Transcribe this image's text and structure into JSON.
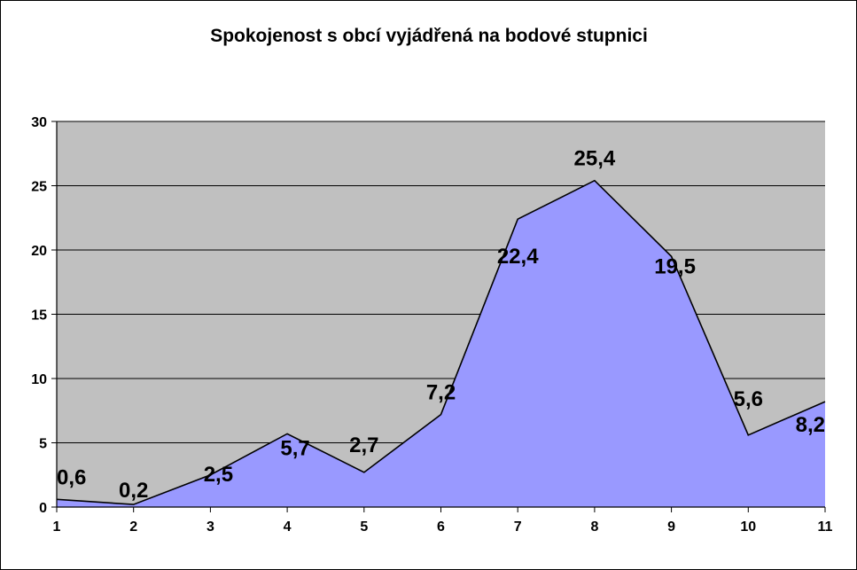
{
  "chart_data": {
    "type": "area",
    "title": "Spokojenost s obcí vyjádřená na bodové stupnici",
    "categories": [
      "1",
      "2",
      "3",
      "4",
      "5",
      "6",
      "7",
      "8",
      "9",
      "10",
      "11"
    ],
    "values": [
      0.6,
      0.2,
      2.5,
      5.7,
      2.7,
      7.2,
      22.4,
      25.4,
      19.5,
      5.6,
      8.2
    ],
    "data_labels": [
      "0,6",
      "0,2",
      "2,5",
      "5,7",
      "2,7",
      "7,2",
      "22,4",
      "25,4",
      "19,5",
      "5,6",
      "8,2"
    ],
    "yticks": [
      "0",
      "5",
      "10",
      "15",
      "20",
      "25",
      "30"
    ],
    "ylim": [
      0,
      30
    ],
    "grid": true,
    "legend": false,
    "colors": {
      "plot_background": "#c0c0c0",
      "area_fill": "#9999ff",
      "line": "#000000",
      "gridline": "#000000"
    }
  }
}
